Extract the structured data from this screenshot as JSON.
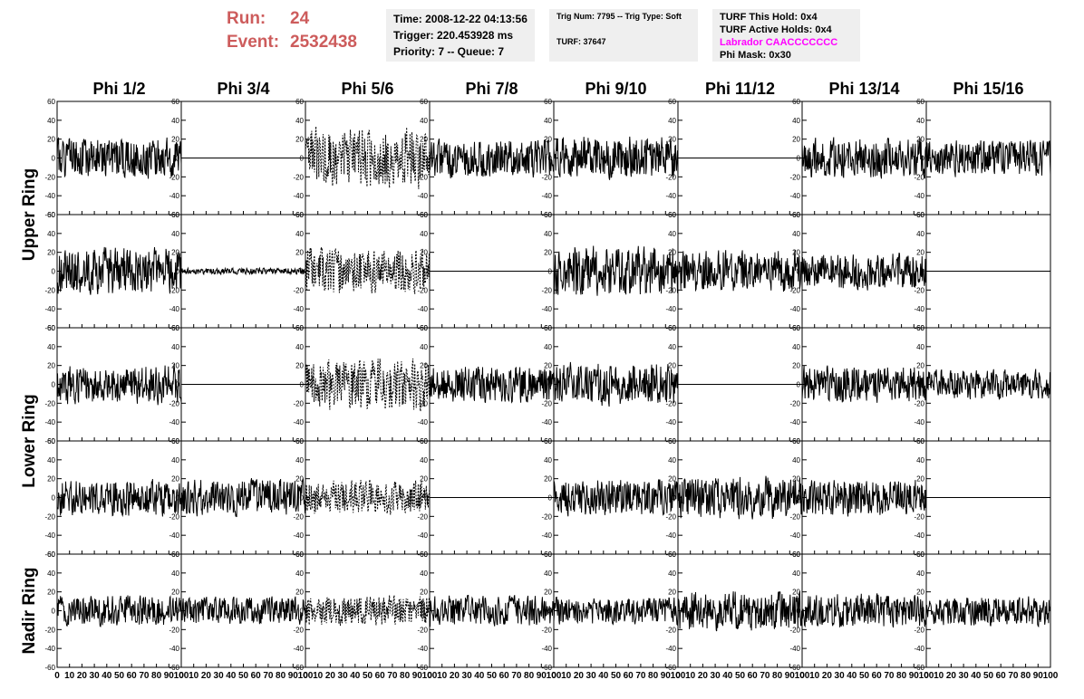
{
  "header": {
    "run_label": "Run:",
    "run_value": "24",
    "event_label": "Event:",
    "event_value": "2532438"
  },
  "info": {
    "time": "Time: 2008-12-22 04:13:56",
    "trigger": "Trigger: 220.453928 ms",
    "priority": "Priority: 7 -- Queue: 7",
    "trig_num": "Trig Num: 7795 -- Trig Type: Soft",
    "turf": "TURF: 37647",
    "turf_this_hold": "TURF This Hold: 0x4",
    "turf_active_holds": "TURF Active Holds: 0x4",
    "labrador": "Labrador CAACCCCCCC",
    "phi_mask": "Phi Mask: 0x30"
  },
  "colors": {
    "run_text": "#cd5c5c",
    "labrador_text": "#ff00ff",
    "info_bg": "#efefef",
    "trace": "#000000"
  },
  "chart_data": {
    "type": "line",
    "columns": [
      "Phi 1/2",
      "Phi 3/4",
      "Phi 5/6",
      "Phi 7/8",
      "Phi 9/10",
      "Phi 11/12",
      "Phi 13/14",
      "Phi 15/16"
    ],
    "rows": [
      "Upper Ring",
      "Upper Ring",
      "Lower Ring",
      "Lower Ring",
      "Nadir Ring"
    ],
    "row_labels": [
      "Upper Ring",
      "Lower Ring",
      "Nadir Ring"
    ],
    "xlim": [
      0,
      100
    ],
    "ylim": [
      -60,
      60
    ],
    "x_ticks": [
      "0",
      "10",
      "20",
      "30",
      "40",
      "50",
      "60",
      "70",
      "80",
      "90",
      "100"
    ],
    "y_ticks": [
      "60",
      "40",
      "20",
      "0",
      "-20",
      "-40",
      "-60"
    ],
    "panels": [
      [
        {
          "a": 13,
          "s": 1
        },
        {
          "a": 0,
          "s": 2
        },
        {
          "a": 20,
          "s": 3,
          "d": 1
        },
        {
          "a": 13,
          "s": 4
        },
        {
          "a": 14,
          "s": 5
        },
        {
          "a": 0,
          "s": 6
        },
        {
          "a": 13,
          "s": 7
        },
        {
          "a": 12,
          "s": 8
        }
      ],
      [
        {
          "a": 16,
          "s": 9
        },
        {
          "a": 2,
          "s": 10
        },
        {
          "a": 15,
          "s": 11,
          "d": 1
        },
        {
          "a": 0,
          "s": 12
        },
        {
          "a": 17,
          "s": 13
        },
        {
          "a": 14,
          "s": 14
        },
        {
          "a": 12,
          "s": 15
        },
        {
          "a": 0,
          "s": 16
        }
      ],
      [
        {
          "a": 13,
          "s": 17
        },
        {
          "a": 0,
          "s": 18
        },
        {
          "a": 17,
          "s": 19,
          "d": 1
        },
        {
          "a": 12,
          "s": 20
        },
        {
          "a": 14,
          "s": 21
        },
        {
          "a": 0,
          "s": 22
        },
        {
          "a": 12,
          "s": 23
        },
        {
          "a": 10,
          "s": 24
        }
      ],
      [
        {
          "a": 12,
          "s": 25
        },
        {
          "a": 12,
          "s": 26
        },
        {
          "a": 11,
          "s": 27,
          "d": 1
        },
        {
          "a": 0,
          "s": 28
        },
        {
          "a": 12,
          "s": 29
        },
        {
          "a": 14,
          "s": 30
        },
        {
          "a": 12,
          "s": 31
        },
        {
          "a": 0,
          "s": 32
        }
      ],
      [
        {
          "a": 10,
          "s": 33
        },
        {
          "a": 9,
          "s": 34
        },
        {
          "a": 10,
          "s": 35,
          "d": 1
        },
        {
          "a": 10,
          "s": 36
        },
        {
          "a": 9,
          "s": 37
        },
        {
          "a": 13,
          "s": 38
        },
        {
          "a": 11,
          "s": 39
        },
        {
          "a": 10,
          "s": 40
        }
      ]
    ]
  }
}
